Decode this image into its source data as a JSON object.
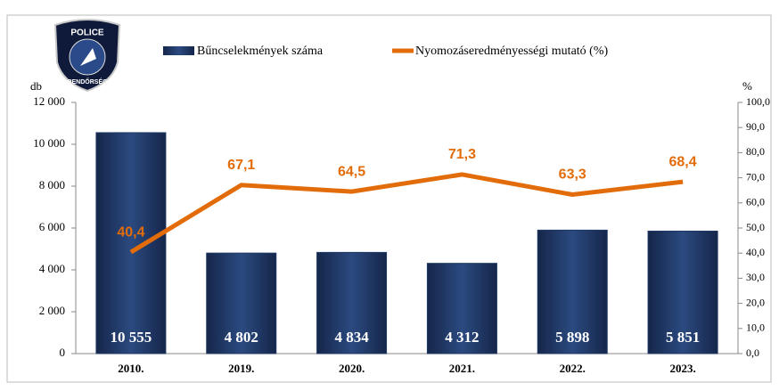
{
  "logo": {
    "top": "POLICE",
    "bottom": "RENDŐRSÉG"
  },
  "chart_data": {
    "type": "combo",
    "ylabel": "db",
    "y2label": "%",
    "categories": [
      "2010.",
      "2019.",
      "2020.",
      "2021.",
      "2022.",
      "2023."
    ],
    "series": [
      {
        "name": "Bűncselekmények száma",
        "type": "bar",
        "color": "#1f3864",
        "values": [
          10555,
          4802,
          4834,
          4312,
          5898,
          5851
        ],
        "value_labels": [
          "10 555",
          "4 802",
          "4 834",
          "4 312",
          "5 898",
          "5 851"
        ]
      },
      {
        "name": "Nyomozáseredményességi mutató (%)",
        "type": "line",
        "axis": "y2",
        "color": "#e36c0a",
        "values": [
          40.4,
          67.1,
          64.5,
          71.3,
          63.3,
          68.4
        ],
        "value_labels": [
          "40,4",
          "67,1",
          "64,5",
          "71,3",
          "63,3",
          "68,4"
        ]
      }
    ],
    "ylim": [
      0,
      12000
    ],
    "yticks": [
      0,
      {
        "value": 2000,
        "label": "2 000"
      },
      {
        "value": 4000,
        "label": "4 000"
      },
      {
        "value": 6000,
        "label": "6 000"
      },
      {
        "value": 8000,
        "label": "8 000"
      },
      {
        "value": 10000,
        "label": "10 000"
      },
      {
        "value": 12000,
        "label": "12 000"
      }
    ],
    "y2lim": [
      0,
      100
    ],
    "y2ticks": [
      {
        "value": 0,
        "label": "0,0"
      },
      {
        "value": 10,
        "label": "10,0"
      },
      {
        "value": 20,
        "label": "20,0"
      },
      {
        "value": 30,
        "label": "30,0"
      },
      {
        "value": 40,
        "label": "40,0"
      },
      {
        "value": 50,
        "label": "50,0"
      },
      {
        "value": 60,
        "label": "60,0"
      },
      {
        "value": 70,
        "label": "70,0"
      },
      {
        "value": 80,
        "label": "80,0"
      },
      {
        "value": 90,
        "label": "90,0"
      },
      {
        "value": 100,
        "label": "100,0"
      }
    ]
  }
}
